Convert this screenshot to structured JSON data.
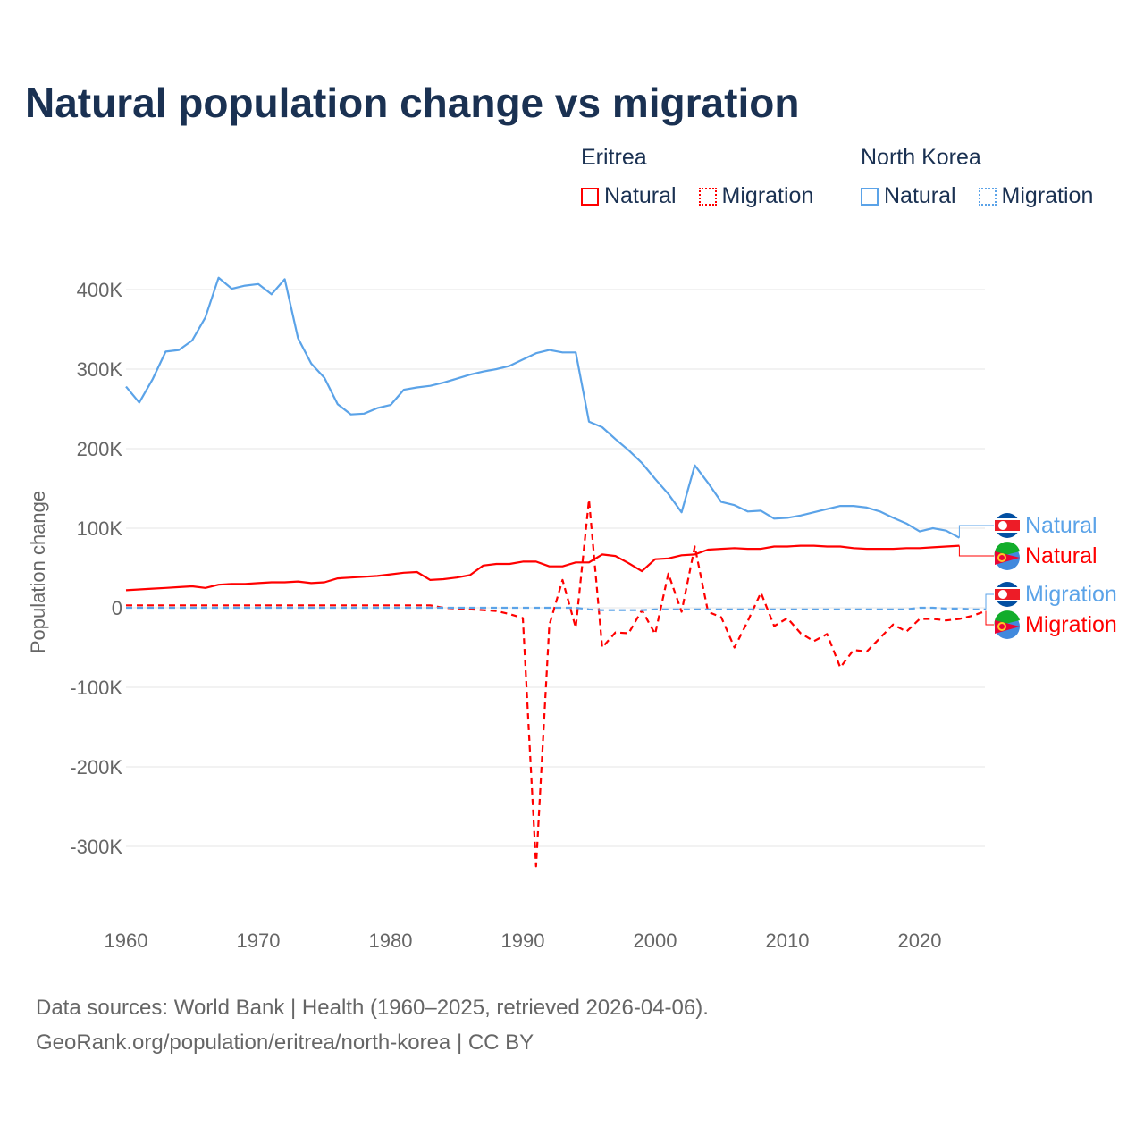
{
  "title": "Natural population change vs migration",
  "legend": [
    {
      "country": "Eritrea",
      "items": [
        "Natural",
        "Migration"
      ],
      "color": "#ff0000"
    },
    {
      "country": "North Korea",
      "items": [
        "Natural",
        "Migration"
      ],
      "color": "#5ba3e8"
    }
  ],
  "source": {
    "line1": "Data sources: World Bank | Health (1960–2025, retrieved 2026-04-06).",
    "line2": "GeoRank.org/population/eritrea/north-korea | CC BY"
  },
  "chart_data": {
    "type": "line",
    "title": "Natural population change vs migration",
    "xlabel": "",
    "ylabel": "Population change",
    "xlim": [
      1960,
      2025
    ],
    "ylim": [
      -350000,
      430000
    ],
    "xticks": [
      1960,
      1970,
      1980,
      1990,
      2000,
      2010,
      2020
    ],
    "yticks": [
      {
        "v": 400000,
        "l": "400K"
      },
      {
        "v": 300000,
        "l": "300K"
      },
      {
        "v": 200000,
        "l": "200K"
      },
      {
        "v": 100000,
        "l": "100K"
      },
      {
        "v": 0,
        "l": "0"
      },
      {
        "v": -100000,
        "l": "-100K"
      },
      {
        "v": -200000,
        "l": "-200K"
      },
      {
        "v": -300000,
        "l": "-300K"
      }
    ],
    "grid": true,
    "series": [
      {
        "name": "North Korea Natural",
        "label": "Natural",
        "color": "#5ba3e8",
        "dash": false,
        "start": 1960,
        "values_k": [
          278,
          258,
          287,
          322,
          324,
          336,
          365,
          415,
          401,
          405,
          407,
          394,
          413,
          339,
          307,
          289,
          256,
          243,
          244,
          251,
          255,
          274,
          277,
          279,
          283,
          288,
          293,
          297,
          300,
          304,
          312,
          320,
          324,
          321,
          321,
          234,
          227,
          212,
          198,
          182,
          162,
          143,
          120,
          179,
          157,
          133,
          129,
          121,
          122,
          112,
          113,
          116,
          120,
          124,
          128,
          128,
          126,
          121,
          113,
          106,
          96,
          100,
          97,
          88
        ]
      },
      {
        "name": "Eritrea Natural",
        "label": "Natural",
        "color": "#ff0000",
        "dash": false,
        "start": 1960,
        "values_k": [
          22,
          23,
          24,
          25,
          26,
          27,
          25,
          29,
          30,
          30,
          31,
          32,
          32,
          33,
          31,
          32,
          37,
          38,
          39,
          40,
          42,
          44,
          45,
          35,
          36,
          38,
          41,
          53,
          55,
          55,
          58,
          58,
          52,
          52,
          57,
          57,
          67,
          65,
          56,
          46,
          61,
          62,
          66,
          67,
          73,
          74,
          75,
          74,
          74,
          77,
          77,
          78,
          78,
          77,
          77,
          75,
          74,
          74,
          74,
          75,
          75,
          76,
          77,
          78
        ]
      },
      {
        "name": "North Korea Migration",
        "label": "Migration",
        "color": "#5ba3e8",
        "dash": true,
        "start": 1960,
        "values_k": [
          0,
          0,
          0,
          0,
          0,
          0,
          0,
          0,
          0,
          0,
          0,
          0,
          0,
          0,
          0,
          0,
          0,
          0,
          0,
          0,
          0,
          0,
          0,
          0,
          0,
          0,
          0,
          0,
          0,
          0,
          0,
          0,
          0,
          0,
          0,
          -2,
          -3,
          -3,
          -3,
          -3,
          -2,
          -2,
          -2,
          -2,
          -2,
          -2,
          -2,
          -2,
          -2,
          -2,
          -2,
          -2,
          -2,
          -2,
          -2,
          -2,
          -2,
          -2,
          -2,
          -2,
          0,
          0,
          -1,
          -1,
          -2,
          -2
        ]
      },
      {
        "name": "Eritrea Migration",
        "label": "Migration",
        "color": "#ff0000",
        "dash": true,
        "start": 1960,
        "values_k": [
          3,
          3,
          3,
          3,
          3,
          3,
          3,
          3,
          3,
          3,
          3,
          3,
          3,
          3,
          3,
          3,
          3,
          3,
          3,
          3,
          3,
          3,
          3,
          3,
          0,
          -1,
          -2,
          -3,
          -4,
          -8,
          -13,
          -325,
          -22,
          35,
          -25,
          136,
          -50,
          -31,
          -32,
          -3,
          -33,
          43,
          -5,
          77,
          -5,
          -12,
          -50,
          -17,
          19,
          -23,
          -13,
          -32,
          -42,
          -33,
          -75,
          -53,
          -55,
          -38,
          -21,
          -30,
          -14,
          -14,
          -16,
          -14,
          -10,
          -4
        ]
      }
    ]
  }
}
